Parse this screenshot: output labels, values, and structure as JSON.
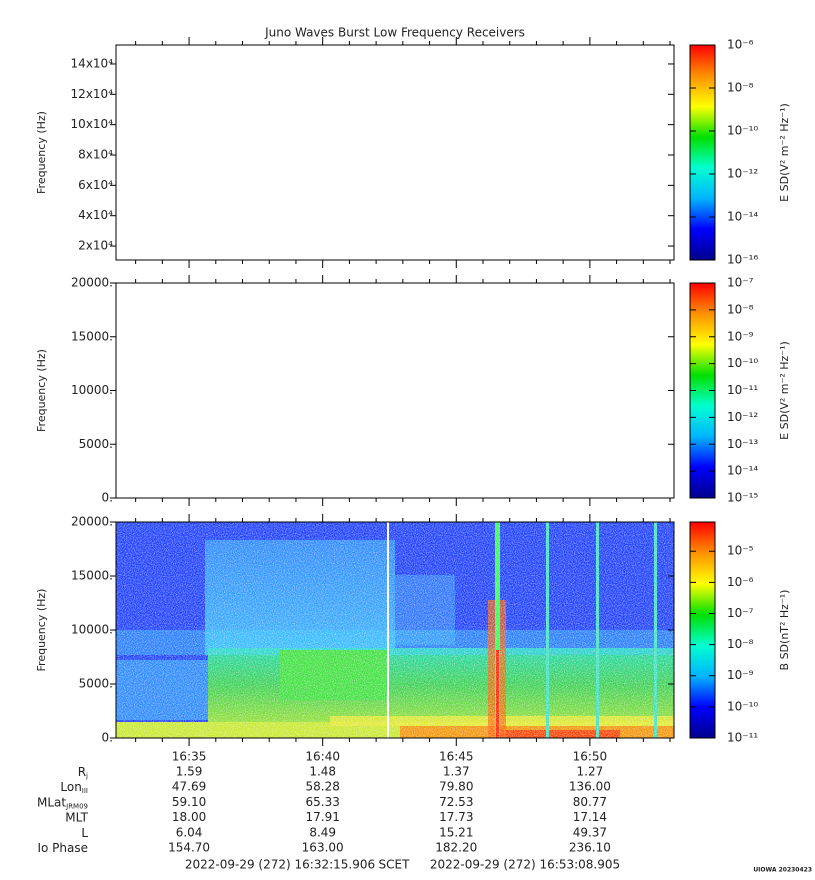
{
  "title": "Juno Waves Burst Low Frequency Receivers",
  "chart_data": [
    {
      "type": "spectrogram",
      "ylabel": "Frequency (Hz)",
      "ylim": [
        10800,
        152500
      ],
      "yticks": [
        {
          "value": 20000,
          "label": "2x10⁴"
        },
        {
          "value": 40000,
          "label": "4x10⁴"
        },
        {
          "value": 60000,
          "label": "6x10⁴"
        },
        {
          "value": 80000,
          "label": "8x10⁴"
        },
        {
          "value": 100000,
          "label": "10x10⁴"
        },
        {
          "value": 120000,
          "label": "12x10⁴"
        },
        {
          "value": 140000,
          "label": "14x10⁴"
        }
      ],
      "colorbar": {
        "label": "E SD(V² m⁻² Hz⁻¹)",
        "clim": [
          1e-16,
          1e-06
        ],
        "log": true,
        "ticks": [
          {
            "value": 1e-06,
            "label": "10⁻⁶"
          },
          {
            "value": 1e-08,
            "label": "10⁻⁸"
          },
          {
            "value": 1e-10,
            "label": "10⁻¹⁰"
          },
          {
            "value": 1e-12,
            "label": "10⁻¹²"
          },
          {
            "value": 1e-14,
            "label": "10⁻¹⁴"
          },
          {
            "value": 1e-16,
            "label": "10⁻¹⁶"
          }
        ]
      }
    },
    {
      "type": "spectrogram",
      "ylabel": "Frequency (Hz)",
      "ylim": [
        0,
        20000
      ],
      "yticks": [
        {
          "value": 0,
          "label": "0."
        },
        {
          "value": 5000,
          "label": "5000."
        },
        {
          "value": 10000,
          "label": "10000."
        },
        {
          "value": 15000,
          "label": "15000."
        },
        {
          "value": 20000,
          "label": "20000."
        }
      ],
      "colorbar": {
        "label": "E SD(V² m⁻² Hz⁻¹)",
        "clim": [
          1e-15,
          1e-07
        ],
        "log": true,
        "ticks": [
          {
            "value": 1e-07,
            "label": "10⁻⁷"
          },
          {
            "value": 1e-08,
            "label": "10⁻⁸"
          },
          {
            "value": 1e-09,
            "label": "10⁻⁹"
          },
          {
            "value": 1e-10,
            "label": "10⁻¹⁰"
          },
          {
            "value": 1e-11,
            "label": "10⁻¹¹"
          },
          {
            "value": 1e-12,
            "label": "10⁻¹²"
          },
          {
            "value": 1e-13,
            "label": "10⁻¹³"
          },
          {
            "value": 1e-14,
            "label": "10⁻¹⁴"
          },
          {
            "value": 1e-15,
            "label": "10⁻¹⁵"
          }
        ]
      }
    },
    {
      "type": "spectrogram",
      "ylabel": "Frequency (Hz)",
      "ylim": [
        0,
        20000
      ],
      "yticks": [
        {
          "value": 0,
          "label": "0."
        },
        {
          "value": 5000,
          "label": "5000."
        },
        {
          "value": 10000,
          "label": "10000."
        },
        {
          "value": 15000,
          "label": "15000."
        },
        {
          "value": 20000,
          "label": "20000."
        }
      ],
      "colorbar": {
        "label": "B SD(nT² Hz⁻¹)",
        "clim": [
          1e-11,
          8.7e-05
        ],
        "log": true,
        "ticks": [
          {
            "value": 1e-05,
            "label": "10⁻⁵"
          },
          {
            "value": 1e-06,
            "label": "10⁻⁶"
          },
          {
            "value": 1e-07,
            "label": "10⁻⁷"
          },
          {
            "value": 1e-08,
            "label": "10⁻⁸"
          },
          {
            "value": 1e-09,
            "label": "10⁻⁹"
          },
          {
            "value": 1e-10,
            "label": "10⁻¹⁰"
          },
          {
            "value": 1e-11,
            "label": "10⁻¹¹"
          }
        ]
      },
      "xticks": [
        "16:35",
        "16:40",
        "16:45",
        "16:50"
      ]
    }
  ],
  "colorscale": [
    "#00008c",
    "#0000ff",
    "#00b4ff",
    "#00ffd0",
    "#00e000",
    "#ffff00",
    "#ff9000",
    "#ff0000"
  ],
  "ephemeris": [
    {
      "label": "R",
      "sub": "j",
      "values": [
        "1.59",
        "1.48",
        "1.37",
        "1.27"
      ]
    },
    {
      "label": "Lon",
      "sub": "III",
      "values": [
        "47.69",
        "58.28",
        "79.80",
        "136.00"
      ]
    },
    {
      "label": "MLat",
      "sub": "JRM09",
      "values": [
        "59.10",
        "65.33",
        "72.53",
        "80.77"
      ]
    },
    {
      "label": "MLT",
      "values": [
        "18.00",
        "17.91",
        "17.73",
        "17.14"
      ]
    },
    {
      "label": "L",
      "values": [
        "6.04",
        "8.49",
        "15.21",
        "49.37"
      ]
    },
    {
      "label": "Io Phase",
      "values": [
        "154.70",
        "163.00",
        "182.20",
        "236.10"
      ]
    }
  ],
  "footer": {
    "start": "2022-09-29 (272) 16:32:15.906",
    "axis": "SCET",
    "end": "2022-09-29 (272) 16:53:08.905"
  },
  "credit": "UIOWA 20230423"
}
